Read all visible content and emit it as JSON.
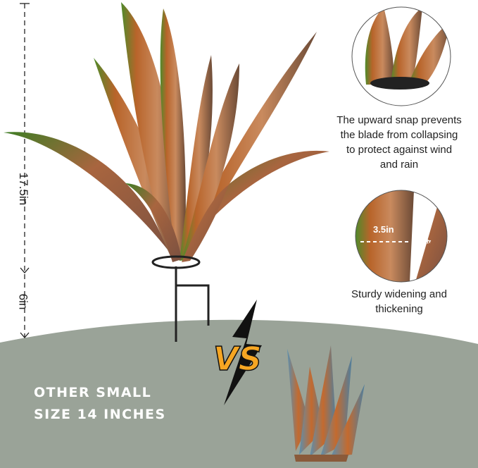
{
  "dimensions": {
    "height_total": "17.5in",
    "stake": "6in"
  },
  "features": [
    {
      "caption": "The upward snap prevents the blade from collapsing to protect against wind and rain",
      "lines": [
        "The upward snap prevents",
        "the blade from collapsing",
        "to protect against wind",
        "and rain"
      ]
    },
    {
      "caption": "Sturdy widening and thickening",
      "lines": [
        "Sturdy widening and",
        "thickening"
      ],
      "width_label": "3.5in",
      "thickness_label": "0.3in"
    }
  ],
  "comparison": {
    "vs_label": "VS",
    "other_lines": [
      "OTHER SMALL",
      "SIZE 14 INCHES"
    ]
  },
  "colors": {
    "ground": "#9aa398",
    "leaf_copper": "#b06a3e",
    "leaf_green": "#4f8a2a",
    "vs_orange": "#f6a623"
  }
}
